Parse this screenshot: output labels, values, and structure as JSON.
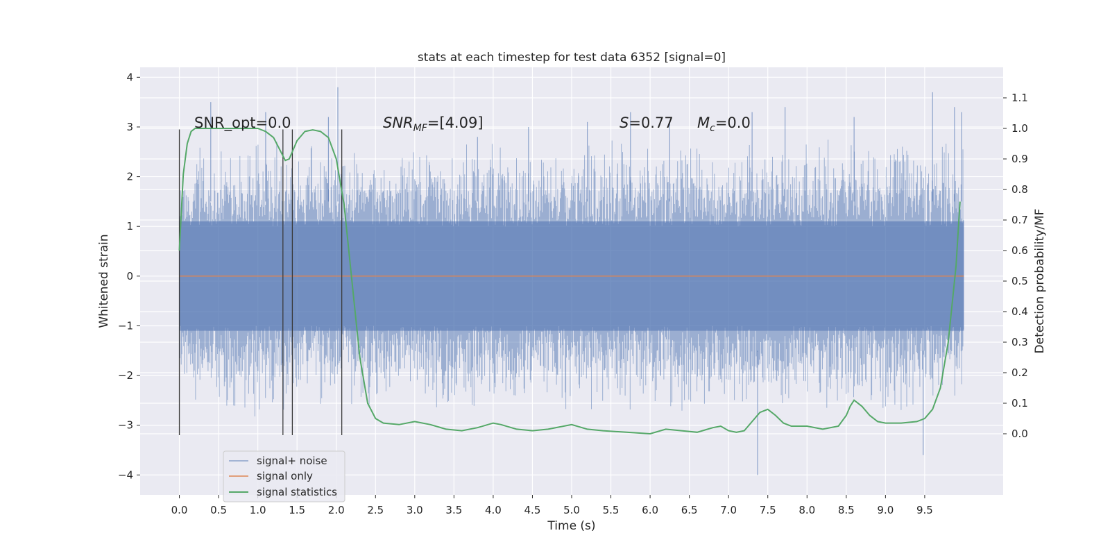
{
  "chart_data": {
    "type": "line",
    "title": "stats at each timestep for test data 6352 [signal=0]",
    "xlabel": "Time (s)",
    "ylabel": "Whitened strain",
    "ylabel_right": "Detection probability/MF",
    "xlim": [
      -0.5,
      10.5
    ],
    "ylim": [
      -4.4,
      4.2
    ],
    "ylim_right": [
      -0.2,
      1.2
    ],
    "x_ticks": [
      "0.0",
      "0.5",
      "1.0",
      "1.5",
      "2.0",
      "2.5",
      "3.0",
      "3.5",
      "4.0",
      "4.5",
      "5.0",
      "5.5",
      "6.0",
      "6.5",
      "7.0",
      "7.5",
      "8.0",
      "8.5",
      "9.0",
      "9.5"
    ],
    "y_ticks": [
      "−4",
      "−3",
      "−2",
      "−1",
      "0",
      "1",
      "2",
      "3",
      "4"
    ],
    "y_right_ticks": [
      "0.0",
      "0.1",
      "0.2",
      "0.3",
      "0.4",
      "0.5",
      "0.6",
      "0.7",
      "0.8",
      "0.9",
      "1.0",
      "1.1"
    ],
    "grid": true,
    "legend_position": "lower-left",
    "annotations": {
      "snr_opt": "SNR_opt=0.0",
      "snr_mf_main": "SNR",
      "snr_mf_sub": "MF",
      "snr_mf_val": "=[4.09]",
      "s_main": "S",
      "s_val": "=0.77",
      "mc_main": "M",
      "mc_sub": "c",
      "mc_val": "=0.0"
    },
    "vertical_lines": [
      0.0,
      1.32,
      1.44,
      2.07
    ],
    "series": [
      {
        "name": "signal+ noise",
        "color": "#4c72b0",
        "envelope_t": [
          0.0,
          0.5,
          1.0,
          1.5,
          2.0,
          2.5,
          3.0,
          3.5,
          4.0,
          4.5,
          5.0,
          5.5,
          6.0,
          6.5,
          7.0,
          7.5,
          8.0,
          8.5,
          9.0,
          9.5,
          10.0
        ],
        "envelope_upper": [
          2.4,
          2.6,
          2.5,
          2.4,
          2.6,
          2.4,
          2.5,
          2.4,
          2.6,
          2.5,
          2.4,
          2.6,
          2.5,
          2.6,
          2.4,
          2.5,
          2.6,
          2.5,
          2.6,
          2.7,
          2.4
        ],
        "envelope_lower": [
          -2.4,
          -2.5,
          -2.6,
          -2.5,
          -2.4,
          -2.5,
          -2.4,
          -2.6,
          -2.5,
          -2.4,
          -2.5,
          -2.6,
          -2.5,
          -2.6,
          -2.5,
          -2.6,
          -2.4,
          -2.5,
          -2.6,
          -2.5,
          -2.3
        ],
        "spikes_t": [
          0.4,
          1.1,
          1.9,
          2.02,
          3.8,
          4.45,
          5.2,
          5.75,
          6.25,
          7.3,
          7.37,
          7.72,
          8.6,
          9.48,
          9.6,
          9.88,
          9.97
        ],
        "spikes_y": [
          3.5,
          3.3,
          3.2,
          3.8,
          2.8,
          3.0,
          3.1,
          3.3,
          3.1,
          3.3,
          -4.0,
          3.4,
          3.2,
          -3.6,
          3.7,
          3.4,
          3.3
        ]
      },
      {
        "name": "signal only",
        "color": "#dd8452",
        "x": [
          0.0,
          10.0
        ],
        "y": [
          0.0,
          0.0
        ]
      },
      {
        "name": "signal statistics",
        "color": "#55a868",
        "axis": "right",
        "x": [
          0.0,
          0.05,
          0.1,
          0.15,
          0.2,
          0.3,
          0.5,
          0.8,
          1.0,
          1.1,
          1.2,
          1.3,
          1.35,
          1.4,
          1.5,
          1.6,
          1.7,
          1.8,
          1.9,
          2.0,
          2.1,
          2.2,
          2.3,
          2.4,
          2.5,
          2.6,
          2.8,
          3.0,
          3.2,
          3.4,
          3.6,
          3.8,
          4.0,
          4.1,
          4.3,
          4.5,
          4.7,
          5.0,
          5.2,
          5.4,
          5.7,
          6.0,
          6.2,
          6.4,
          6.6,
          6.8,
          6.9,
          7.0,
          7.1,
          7.2,
          7.3,
          7.4,
          7.5,
          7.6,
          7.7,
          7.8,
          8.0,
          8.2,
          8.4,
          8.5,
          8.55,
          8.6,
          8.7,
          8.8,
          8.9,
          9.0,
          9.2,
          9.4,
          9.5,
          9.6,
          9.7,
          9.8,
          9.9,
          9.95
        ],
        "y": [
          0.6,
          0.85,
          0.95,
          0.99,
          1.0,
          1.0,
          1.0,
          1.0,
          1.0,
          0.99,
          0.97,
          0.92,
          0.895,
          0.9,
          0.96,
          0.99,
          0.995,
          0.99,
          0.97,
          0.9,
          0.75,
          0.5,
          0.25,
          0.1,
          0.05,
          0.035,
          0.03,
          0.04,
          0.03,
          0.015,
          0.01,
          0.02,
          0.035,
          0.03,
          0.015,
          0.01,
          0.015,
          0.03,
          0.015,
          0.01,
          0.005,
          0.0,
          0.015,
          0.01,
          0.005,
          0.02,
          0.025,
          0.01,
          0.005,
          0.01,
          0.04,
          0.07,
          0.08,
          0.06,
          0.035,
          0.025,
          0.025,
          0.015,
          0.025,
          0.06,
          0.09,
          0.11,
          0.09,
          0.06,
          0.04,
          0.035,
          0.035,
          0.04,
          0.05,
          0.08,
          0.15,
          0.3,
          0.55,
          0.76
        ]
      }
    ]
  }
}
